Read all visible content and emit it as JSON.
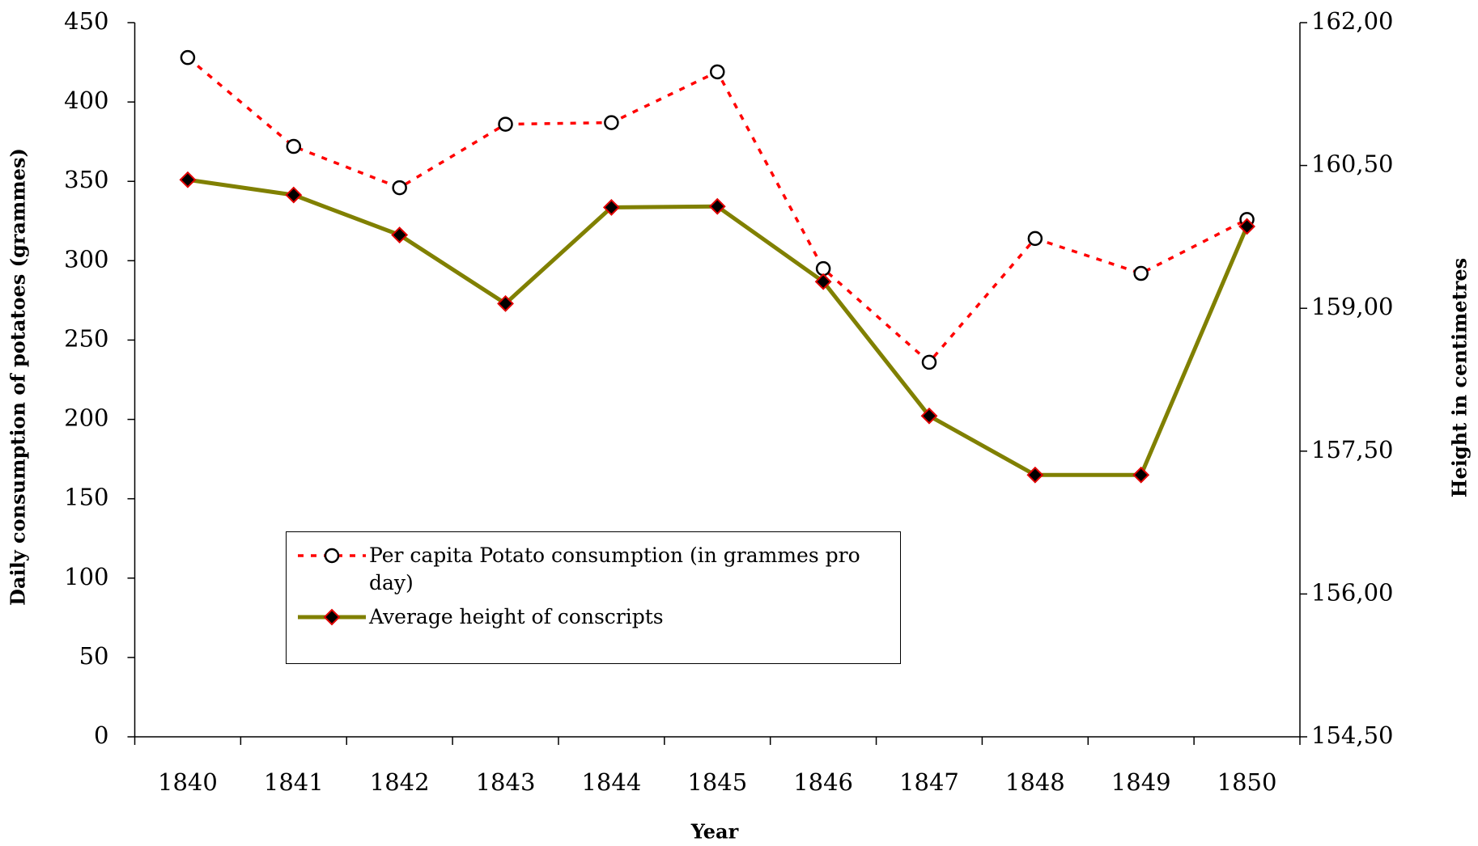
{
  "chart_data": {
    "type": "line",
    "x_label": "Year",
    "y_label": "Daily consumption of potatoes (grammes)",
    "y2_label": "Height in centimetres",
    "categories": [
      "1840",
      "1841",
      "1842",
      "1843",
      "1844",
      "1845",
      "1846",
      "1847",
      "1848",
      "1849",
      "1850"
    ],
    "series": [
      {
        "name": "Per capita Potato consumption (in grammes pro day)",
        "color": "#ff0000",
        "axis": "y",
        "values": [
          428,
          372,
          346,
          386,
          387,
          419,
          295,
          236,
          314,
          292,
          326
        ]
      },
      {
        "name": "Average height of conscripts",
        "color": "#808000",
        "axis": "y2",
        "values": [
          160.35,
          160.19,
          159.77,
          159.05,
          160.06,
          160.07,
          159.28,
          157.87,
          157.25,
          157.25,
          159.86
        ]
      }
    ],
    "ylim": [
      0,
      450
    ],
    "yticks": [
      0,
      50,
      100,
      150,
      200,
      250,
      300,
      350,
      400,
      450
    ],
    "y2lim": [
      154.5,
      162
    ],
    "y2ticks": [
      {
        "value": 154.5,
        "label": "154,50"
      },
      {
        "value": 156,
        "label": "156,00"
      },
      {
        "value": 157.5,
        "label": "157,50"
      },
      {
        "value": 159,
        "label": "159,00"
      },
      {
        "value": 160.5,
        "label": "160,50"
      },
      {
        "value": 162,
        "label": "162,00"
      }
    ],
    "legend": "lower-left"
  }
}
